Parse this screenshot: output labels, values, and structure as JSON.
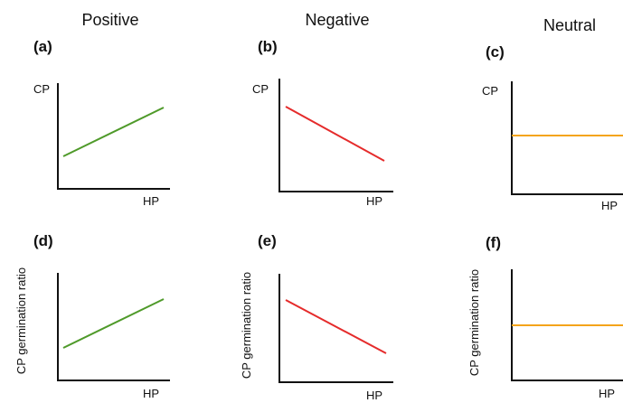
{
  "columns": [
    "Positive",
    "Negative",
    "Neutral"
  ],
  "colors": {
    "positive": "#4f9a2a",
    "negative": "#e52b2b",
    "neutral": "#f4a41a",
    "axis": "#111111"
  },
  "panels": [
    {
      "tag": "(a)",
      "xlabel": "HP",
      "ylabel": "CP",
      "trend": "positive"
    },
    {
      "tag": "(b)",
      "xlabel": "HP",
      "ylabel": "CP",
      "trend": "negative"
    },
    {
      "tag": "(c)",
      "xlabel": "HP",
      "ylabel": "CP",
      "trend": "neutral"
    },
    {
      "tag": "(d)",
      "xlabel": "HP",
      "ylabel": "CP germination ratio",
      "trend": "positive"
    },
    {
      "tag": "(e)",
      "xlabel": "HP",
      "ylabel": "CP germination ratio",
      "trend": "negative"
    },
    {
      "tag": "(f)",
      "xlabel": "HP",
      "ylabel": "CP germination ratio",
      "trend": "neutral"
    }
  ]
}
